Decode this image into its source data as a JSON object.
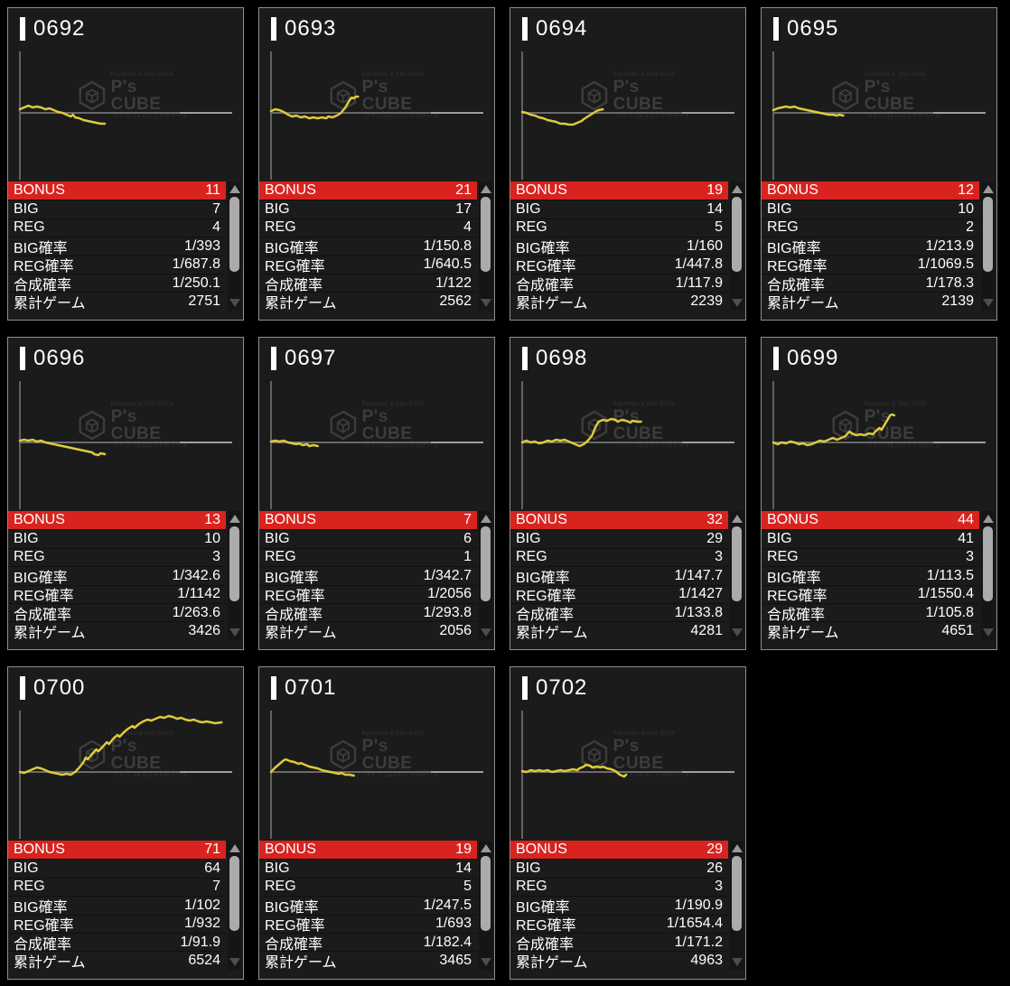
{
  "labels": {
    "bonus": "BONUS",
    "big": "BIG",
    "reg": "REG",
    "big_rate": "BIG確率",
    "reg_rate": "REG確率",
    "combined_rate": "合成確率",
    "total_games": "累計ゲーム"
  },
  "watermark": {
    "top_text": "Pachinko & Slot DATA",
    "logo_text": "P's CUBE",
    "bottom_text": "パチンコ&スロットのデータ"
  },
  "colors": {
    "bonus_row": "#d9231f",
    "line": "#ddcb3b",
    "axis": "#6a6a6a",
    "axis_bright": "#9e9e9e",
    "card_border": "#8f8f8f",
    "card_bg": "#1b1b1b",
    "page_bg": "#000000",
    "watermark": "#3c3c3c"
  },
  "machines": [
    {
      "id": "0692",
      "bonus": "11",
      "big": "7",
      "reg": "4",
      "big_rate": "1/393",
      "reg_rate": "1/687.8",
      "combined_rate": "1/250.1",
      "total_games": "2751",
      "line": [
        [
          0,
          4
        ],
        [
          2,
          6
        ],
        [
          4,
          8
        ],
        [
          6,
          6
        ],
        [
          8,
          7
        ],
        [
          10,
          6
        ],
        [
          12,
          4
        ],
        [
          14,
          5
        ],
        [
          16,
          3
        ],
        [
          18,
          1
        ],
        [
          20,
          0
        ],
        [
          22,
          -2
        ],
        [
          24,
          -4
        ],
        [
          25,
          -2
        ],
        [
          26,
          -5
        ],
        [
          28,
          -6
        ],
        [
          30,
          -8
        ],
        [
          32,
          -9
        ],
        [
          34,
          -10
        ],
        [
          36,
          -11
        ],
        [
          38,
          -12
        ],
        [
          40,
          -12
        ]
      ]
    },
    {
      "id": "0693",
      "bonus": "21",
      "big": "17",
      "reg": "4",
      "big_rate": "1/150.8",
      "reg_rate": "1/640.5",
      "combined_rate": "1/122",
      "total_games": "2562",
      "line": [
        [
          0,
          2
        ],
        [
          2,
          4
        ],
        [
          4,
          3
        ],
        [
          6,
          1
        ],
        [
          8,
          -2
        ],
        [
          10,
          -4
        ],
        [
          12,
          -3
        ],
        [
          14,
          -5
        ],
        [
          16,
          -4
        ],
        [
          18,
          -6
        ],
        [
          20,
          -5
        ],
        [
          22,
          -6
        ],
        [
          24,
          -5
        ],
        [
          26,
          -6
        ],
        [
          27,
          -4
        ],
        [
          29,
          -5
        ],
        [
          31,
          -3
        ],
        [
          33,
          0
        ],
        [
          35,
          6
        ],
        [
          36,
          10
        ],
        [
          37,
          14
        ],
        [
          38,
          17
        ],
        [
          39,
          16
        ],
        [
          40,
          18
        ],
        [
          41,
          18
        ]
      ]
    },
    {
      "id": "0694",
      "bonus": "19",
      "big": "14",
      "reg": "5",
      "big_rate": "1/160",
      "reg_rate": "1/447.8",
      "combined_rate": "1/117.9",
      "total_games": "2239",
      "line": [
        [
          0,
          1
        ],
        [
          2,
          0
        ],
        [
          4,
          -2
        ],
        [
          6,
          -3
        ],
        [
          8,
          -5
        ],
        [
          10,
          -6
        ],
        [
          12,
          -8
        ],
        [
          14,
          -9
        ],
        [
          16,
          -10
        ],
        [
          18,
          -12
        ],
        [
          20,
          -12
        ],
        [
          22,
          -13
        ],
        [
          24,
          -13
        ],
        [
          26,
          -11
        ],
        [
          28,
          -9
        ],
        [
          29,
          -7
        ],
        [
          31,
          -4
        ],
        [
          33,
          -1
        ],
        [
          35,
          2
        ],
        [
          36,
          3
        ],
        [
          38,
          4
        ]
      ]
    },
    {
      "id": "0695",
      "bonus": "12",
      "big": "10",
      "reg": "2",
      "big_rate": "1/213.9",
      "reg_rate": "1/1069.5",
      "combined_rate": "1/178.3",
      "total_games": "2139",
      "line": [
        [
          0,
          3
        ],
        [
          2,
          5
        ],
        [
          4,
          6
        ],
        [
          6,
          7
        ],
        [
          8,
          6
        ],
        [
          10,
          7
        ],
        [
          12,
          5
        ],
        [
          14,
          4
        ],
        [
          16,
          3
        ],
        [
          18,
          2
        ],
        [
          20,
          1
        ],
        [
          22,
          0
        ],
        [
          24,
          -1
        ],
        [
          26,
          -2
        ],
        [
          28,
          -2
        ],
        [
          30,
          -3
        ],
        [
          31,
          -2
        ],
        [
          33,
          -3
        ]
      ]
    },
    {
      "id": "0696",
      "bonus": "13",
      "big": "10",
      "reg": "3",
      "big_rate": "1/342.6",
      "reg_rate": "1/1142",
      "combined_rate": "1/263.6",
      "total_games": "3426",
      "line": [
        [
          0,
          2
        ],
        [
          2,
          3
        ],
        [
          4,
          2
        ],
        [
          6,
          3
        ],
        [
          8,
          1
        ],
        [
          10,
          2
        ],
        [
          12,
          0
        ],
        [
          14,
          -1
        ],
        [
          16,
          -2
        ],
        [
          18,
          -3
        ],
        [
          20,
          -4
        ],
        [
          22,
          -5
        ],
        [
          24,
          -6
        ],
        [
          26,
          -7
        ],
        [
          28,
          -8
        ],
        [
          30,
          -9
        ],
        [
          32,
          -10
        ],
        [
          34,
          -11
        ],
        [
          35,
          -13
        ],
        [
          37,
          -14
        ],
        [
          38,
          -12
        ],
        [
          40,
          -13
        ]
      ]
    },
    {
      "id": "0697",
      "bonus": "7",
      "big": "6",
      "reg": "1",
      "big_rate": "1/342.7",
      "reg_rate": "1/2056",
      "combined_rate": "1/293.8",
      "total_games": "2056",
      "line": [
        [
          0,
          1
        ],
        [
          2,
          2
        ],
        [
          4,
          1
        ],
        [
          6,
          2
        ],
        [
          8,
          0
        ],
        [
          10,
          -1
        ],
        [
          12,
          -2
        ],
        [
          13,
          -1
        ],
        [
          15,
          -3
        ],
        [
          17,
          -2
        ],
        [
          18,
          -4
        ],
        [
          20,
          -3
        ],
        [
          22,
          -4
        ]
      ]
    },
    {
      "id": "0698",
      "bonus": "32",
      "big": "29",
      "reg": "3",
      "big_rate": "1/147.7",
      "reg_rate": "1/1427",
      "combined_rate": "1/133.8",
      "total_games": "4281",
      "line": [
        [
          0,
          0
        ],
        [
          2,
          2
        ],
        [
          4,
          0
        ],
        [
          6,
          1
        ],
        [
          8,
          -1
        ],
        [
          10,
          0
        ],
        [
          12,
          2
        ],
        [
          14,
          1
        ],
        [
          16,
          3
        ],
        [
          18,
          2
        ],
        [
          20,
          3
        ],
        [
          22,
          1
        ],
        [
          24,
          -1
        ],
        [
          26,
          -3
        ],
        [
          27,
          -4
        ],
        [
          29,
          -2
        ],
        [
          31,
          2
        ],
        [
          33,
          8
        ],
        [
          34,
          14
        ],
        [
          35,
          19
        ],
        [
          36,
          23
        ],
        [
          38,
          25
        ],
        [
          40,
          24
        ],
        [
          42,
          26
        ],
        [
          44,
          25
        ],
        [
          45,
          23
        ],
        [
          47,
          25
        ],
        [
          49,
          24
        ],
        [
          51,
          22
        ],
        [
          52,
          24
        ],
        [
          54,
          23
        ],
        [
          56,
          23
        ]
      ]
    },
    {
      "id": "0699",
      "bonus": "44",
      "big": "41",
      "reg": "3",
      "big_rate": "1/113.5",
      "reg_rate": "1/1550.4",
      "combined_rate": "1/105.8",
      "total_games": "4651",
      "line": [
        [
          0,
          0
        ],
        [
          2,
          -2
        ],
        [
          4,
          0
        ],
        [
          6,
          -1
        ],
        [
          8,
          1
        ],
        [
          10,
          0
        ],
        [
          12,
          -2
        ],
        [
          14,
          -1
        ],
        [
          16,
          -3
        ],
        [
          18,
          -2
        ],
        [
          20,
          0
        ],
        [
          22,
          2
        ],
        [
          24,
          1
        ],
        [
          26,
          3
        ],
        [
          28,
          5
        ],
        [
          30,
          3
        ],
        [
          32,
          5
        ],
        [
          34,
          7
        ],
        [
          35,
          10
        ],
        [
          36,
          12
        ],
        [
          37,
          10
        ],
        [
          39,
          8
        ],
        [
          41,
          9
        ],
        [
          43,
          8
        ],
        [
          45,
          10
        ],
        [
          47,
          9
        ],
        [
          48,
          12
        ],
        [
          50,
          16
        ],
        [
          51,
          14
        ],
        [
          52,
          18
        ],
        [
          53,
          22
        ],
        [
          54,
          26
        ],
        [
          55,
          30
        ],
        [
          56,
          31
        ],
        [
          57,
          30
        ]
      ]
    },
    {
      "id": "0700",
      "bonus": "71",
      "big": "64",
      "reg": "7",
      "big_rate": "1/102",
      "reg_rate": "1/932",
      "combined_rate": "1/91.9",
      "total_games": "6524",
      "line": [
        [
          0,
          0
        ],
        [
          2,
          -1
        ],
        [
          4,
          1
        ],
        [
          6,
          3
        ],
        [
          8,
          5
        ],
        [
          10,
          4
        ],
        [
          12,
          2
        ],
        [
          14,
          0
        ],
        [
          16,
          -1
        ],
        [
          18,
          -2
        ],
        [
          20,
          -3
        ],
        [
          22,
          -2
        ],
        [
          24,
          -3
        ],
        [
          26,
          0
        ],
        [
          28,
          5
        ],
        [
          30,
          11
        ],
        [
          31,
          16
        ],
        [
          32,
          14
        ],
        [
          34,
          20
        ],
        [
          36,
          25
        ],
        [
          37,
          23
        ],
        [
          39,
          28
        ],
        [
          41,
          33
        ],
        [
          42,
          31
        ],
        [
          44,
          37
        ],
        [
          46,
          41
        ],
        [
          47,
          39
        ],
        [
          49,
          44
        ],
        [
          51,
          48
        ],
        [
          53,
          51
        ],
        [
          54,
          49
        ],
        [
          56,
          53
        ],
        [
          58,
          56
        ],
        [
          60,
          58
        ],
        [
          62,
          57
        ],
        [
          64,
          59
        ],
        [
          66,
          61
        ],
        [
          68,
          60
        ],
        [
          70,
          62
        ],
        [
          72,
          61
        ],
        [
          74,
          59
        ],
        [
          76,
          60
        ],
        [
          78,
          58
        ],
        [
          80,
          57
        ],
        [
          82,
          58
        ],
        [
          84,
          56
        ],
        [
          86,
          55
        ],
        [
          88,
          56
        ],
        [
          90,
          55
        ],
        [
          92,
          54
        ],
        [
          95,
          55
        ]
      ]
    },
    {
      "id": "0701",
      "bonus": "19",
      "big": "14",
      "reg": "5",
      "big_rate": "1/247.5",
      "reg_rate": "1/693",
      "combined_rate": "1/182.4",
      "total_games": "3465",
      "line": [
        [
          0,
          0
        ],
        [
          2,
          5
        ],
        [
          4,
          9
        ],
        [
          6,
          13
        ],
        [
          7,
          14
        ],
        [
          9,
          12
        ],
        [
          11,
          11
        ],
        [
          13,
          9
        ],
        [
          14,
          10
        ],
        [
          16,
          8
        ],
        [
          18,
          6
        ],
        [
          20,
          5
        ],
        [
          22,
          4
        ],
        [
          24,
          2
        ],
        [
          26,
          1
        ],
        [
          28,
          0
        ],
        [
          30,
          -1
        ],
        [
          32,
          -2
        ],
        [
          33,
          -1
        ],
        [
          35,
          -3
        ],
        [
          37,
          -3
        ],
        [
          39,
          -4
        ]
      ]
    },
    {
      "id": "0702",
      "bonus": "29",
      "big": "26",
      "reg": "3",
      "big_rate": "1/190.9",
      "reg_rate": "1/1654.4",
      "combined_rate": "1/171.2",
      "total_games": "4963",
      "line": [
        [
          0,
          1
        ],
        [
          2,
          0
        ],
        [
          4,
          2
        ],
        [
          6,
          1
        ],
        [
          8,
          2
        ],
        [
          10,
          1
        ],
        [
          12,
          2
        ],
        [
          14,
          0
        ],
        [
          16,
          1
        ],
        [
          18,
          2
        ],
        [
          20,
          1
        ],
        [
          22,
          2
        ],
        [
          24,
          3
        ],
        [
          26,
          2
        ],
        [
          27,
          4
        ],
        [
          29,
          6
        ],
        [
          30,
          8
        ],
        [
          32,
          7
        ],
        [
          33,
          5
        ],
        [
          35,
          6
        ],
        [
          37,
          5
        ],
        [
          38,
          6
        ],
        [
          40,
          4
        ],
        [
          42,
          3
        ],
        [
          44,
          1
        ],
        [
          45,
          -1
        ],
        [
          46,
          -3
        ],
        [
          48,
          -5
        ],
        [
          49,
          -3
        ]
      ]
    }
  ]
}
